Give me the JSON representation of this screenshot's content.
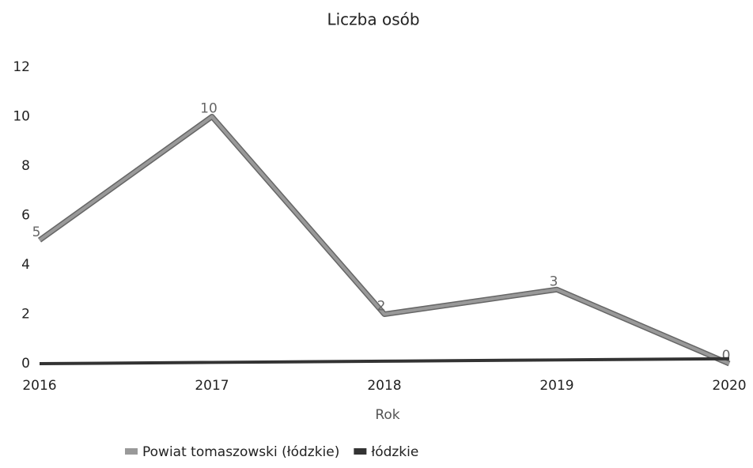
{
  "chart_data": {
    "type": "line",
    "title": "Liczba osób",
    "x_label": "Rok",
    "categories": [
      "2016",
      "2017",
      "2018",
      "2019",
      "2020"
    ],
    "series": [
      {
        "name": "Powiat tomaszowski (łódzkie)",
        "color": "#999999",
        "values": [
          5,
          10,
          2,
          3,
          0
        ],
        "value_labels": [
          "5",
          "10",
          "2",
          "3",
          "0"
        ]
      },
      {
        "name": "łódzkie",
        "color": "#333333",
        "values": [
          0,
          0.05,
          0.1,
          0.15,
          0.2
        ]
      }
    ],
    "ylim": [
      0,
      12
    ],
    "yticks": [
      0,
      2,
      4,
      6,
      8,
      10,
      12
    ],
    "grid": false,
    "legend": "bottom"
  }
}
